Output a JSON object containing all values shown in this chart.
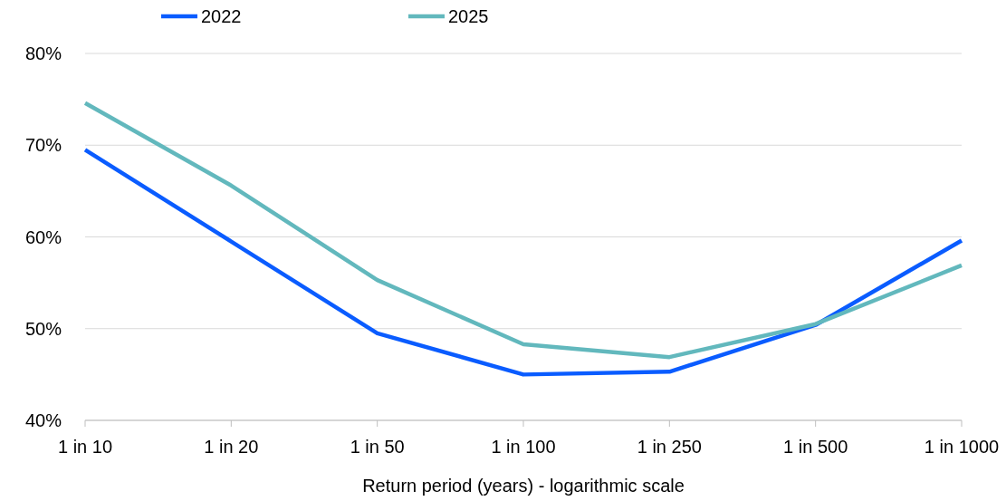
{
  "chart_data": {
    "type": "line",
    "xlabel": "Return period (years) - logarithmic scale",
    "categories": [
      "1 in 10",
      "1 in 20",
      "1 in 50",
      "1 in 100",
      "1 in 250",
      "1 in 500",
      "1 in 1000"
    ],
    "series": [
      {
        "name": "2022",
        "color": "#0a5cff",
        "values": [
          69.5,
          59.5,
          49.5,
          45.0,
          45.3,
          50.4,
          59.6
        ]
      },
      {
        "name": "2025",
        "color": "#62b8bd",
        "values": [
          74.6,
          65.6,
          55.3,
          48.3,
          46.9,
          50.5,
          56.9
        ]
      }
    ],
    "ylim": [
      40,
      80
    ],
    "yticks": [
      {
        "value": 40,
        "label": "40%"
      },
      {
        "value": 50,
        "label": "50%"
      },
      {
        "value": 60,
        "label": "60%"
      },
      {
        "value": 70,
        "label": "70%"
      },
      {
        "value": 80,
        "label": "80%"
      }
    ],
    "grid": "y",
    "legend": "top left",
    "marker": "none",
    "line_style": "solid"
  }
}
